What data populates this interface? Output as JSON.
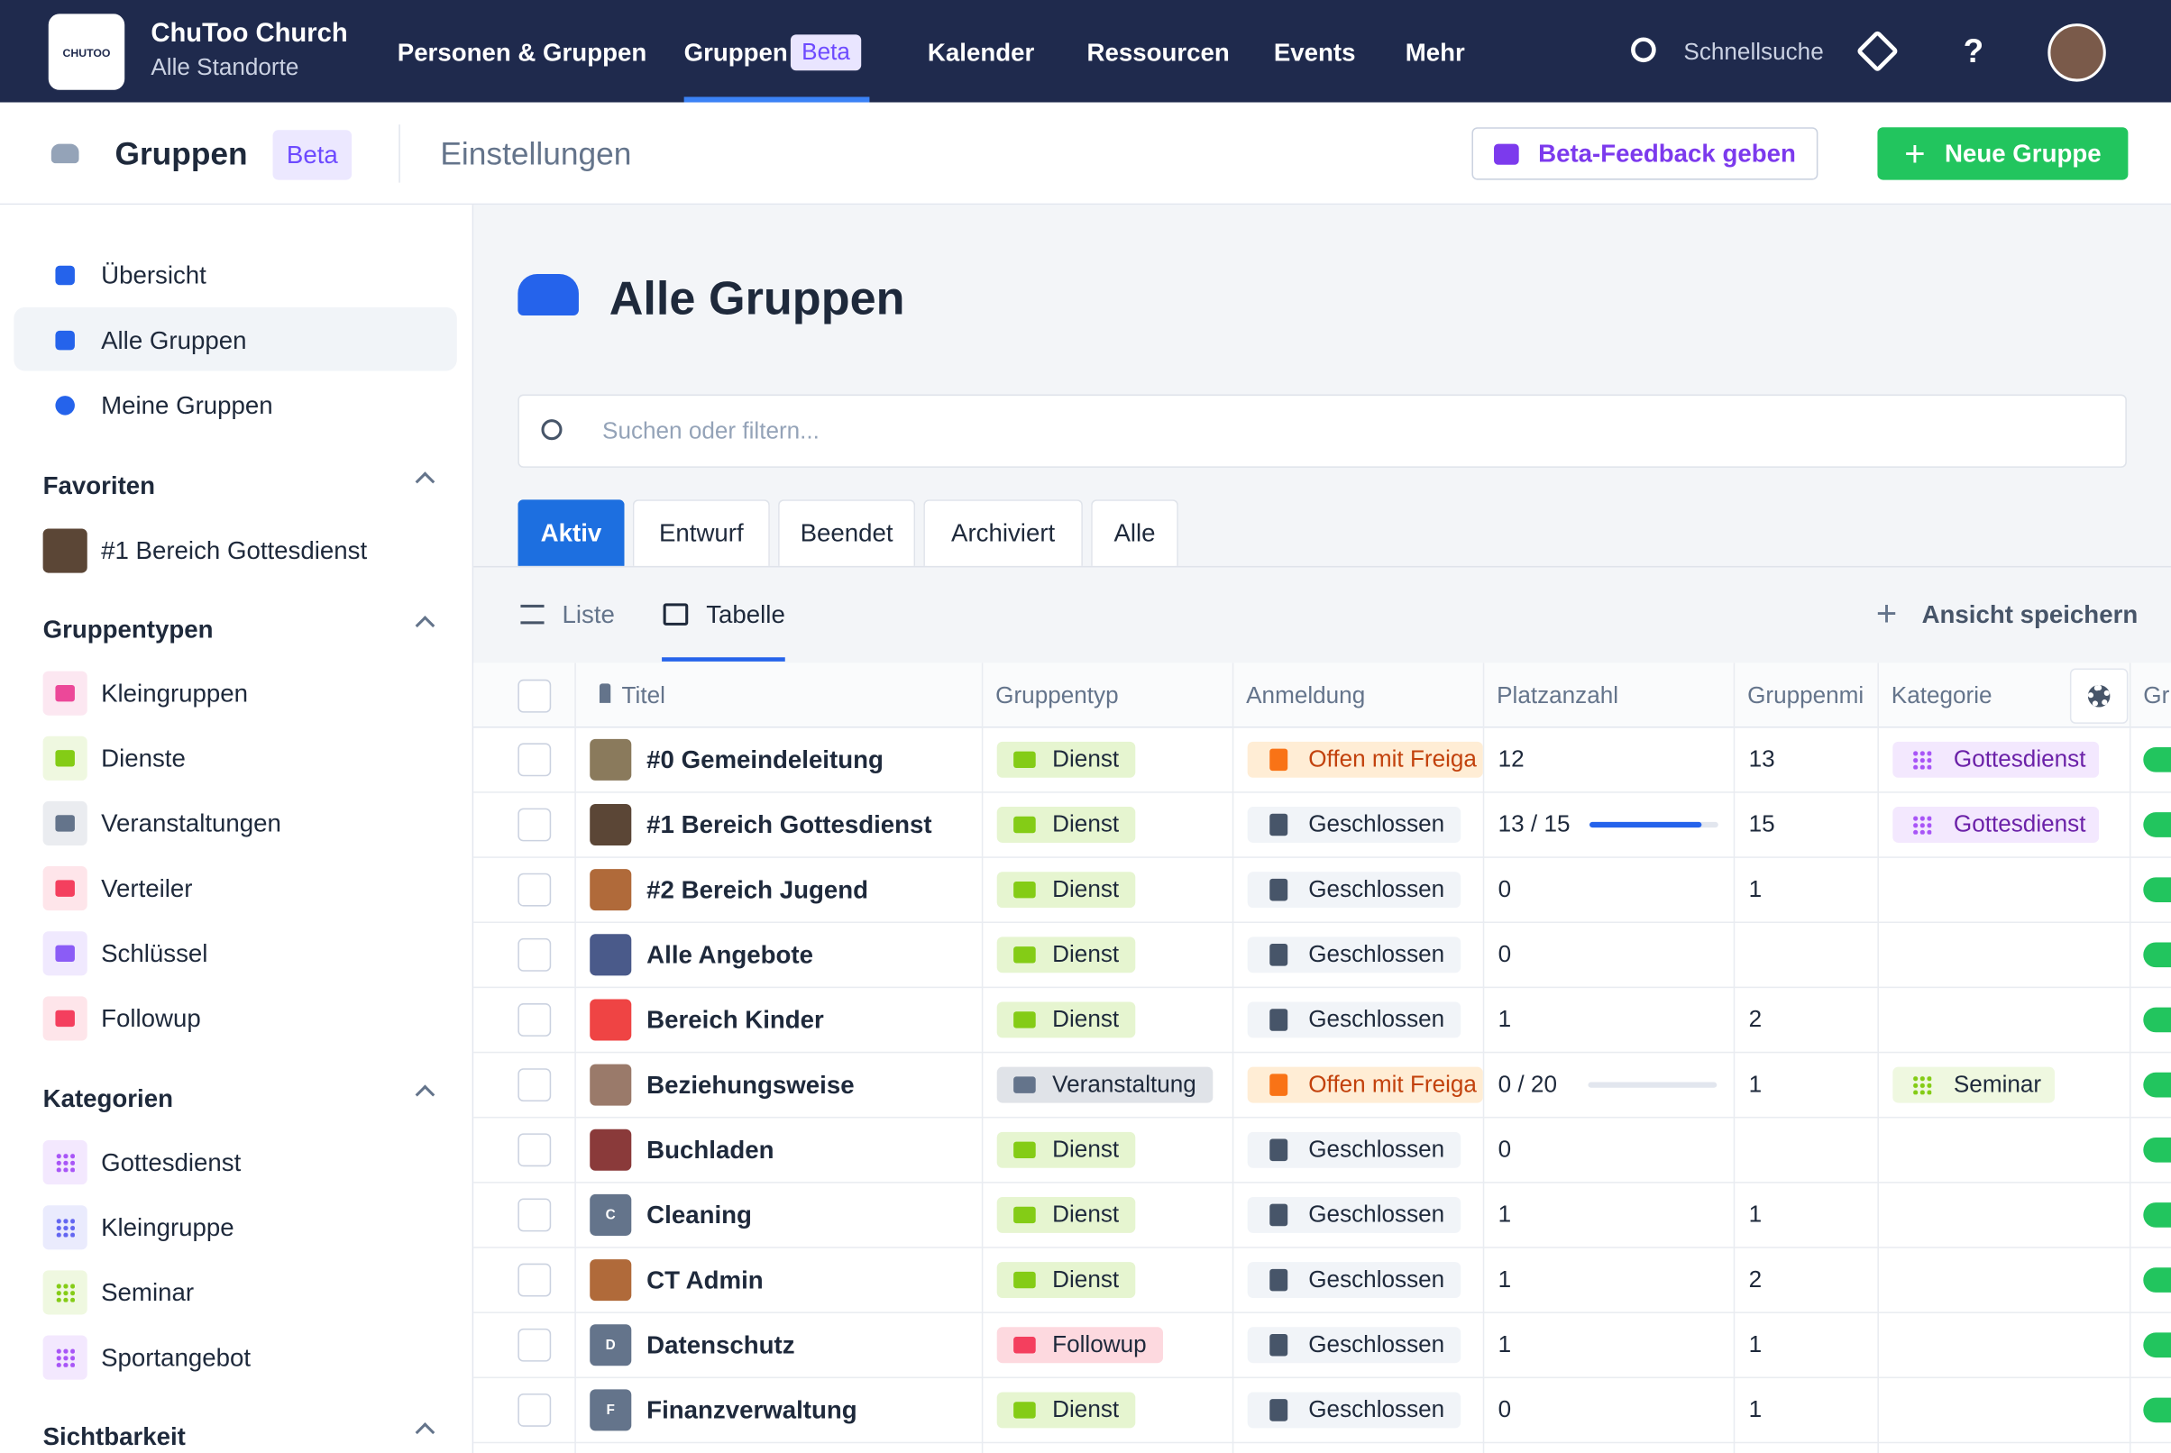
{
  "topbar": {
    "logo": "CHUTOO",
    "org_name": "ChuToo Church",
    "location": "Alle Standorte",
    "nav": [
      "Personen & Gruppen",
      "Gruppen",
      "Kalender",
      "Ressourcen",
      "Events",
      "Mehr"
    ],
    "nav_badge": "Beta",
    "search": "Schnellsuche",
    "help": "?"
  },
  "subheader": {
    "title": "Gruppen",
    "badge": "Beta",
    "settings": "Einstellungen",
    "feedback": "Beta-Feedback geben",
    "new_group": "Neue Gruppe"
  },
  "sidebar": {
    "main": [
      "Übersicht",
      "Alle Gruppen",
      "Meine Gruppen"
    ],
    "favorites": {
      "title": "Favoriten",
      "items": [
        "#1 Bereich Gottesdienst"
      ]
    },
    "types": {
      "title": "Gruppentypen",
      "items": [
        {
          "label": "Kleingruppen",
          "color": "#ec4899"
        },
        {
          "label": "Dienste",
          "color": "#84cc16"
        },
        {
          "label": "Veranstaltungen",
          "color": "#64748b"
        },
        {
          "label": "Verteiler",
          "color": "#f43f5e"
        },
        {
          "label": "Schlüssel",
          "color": "#8b5cf6"
        },
        {
          "label": "Followup",
          "color": "#f43f5e"
        }
      ]
    },
    "categories": {
      "title": "Kategorien",
      "items": [
        {
          "label": "Gottesdienst",
          "color": "#a855f7"
        },
        {
          "label": "Kleingruppe",
          "color": "#6366f1"
        },
        {
          "label": "Seminar",
          "color": "#84cc16"
        },
        {
          "label": "Sportangebot",
          "color": "#a855f7"
        }
      ]
    },
    "visibility": {
      "title": "Sichtbarkeit"
    }
  },
  "main": {
    "title": "Alle Gruppen",
    "search_placeholder": "Suchen oder filtern...",
    "tabs": [
      "Aktiv",
      "Entwurf",
      "Beendet",
      "Archiviert",
      "Alle"
    ],
    "views": [
      "Liste",
      "Tabelle"
    ],
    "save_view": "Ansicht speichern",
    "table": {
      "columns": [
        "Titel",
        "Gruppentyp",
        "Anmeldung",
        "Platzanzahl",
        "Gruppenmi",
        "Kategorie",
        "Gr"
      ],
      "rows": [
        {
          "title": "#0 Gemeindeleitung",
          "avatar": "#8a7a5c",
          "type": "Dienst",
          "type_color": "#84cc16",
          "registration": "Offen mit Freiga",
          "registration_open": true,
          "places": 12,
          "members": 13,
          "category": "Gottesdienst"
        },
        {
          "title": "#1 Bereich Gottesdienst",
          "avatar": "#5b4636",
          "type": "Dienst",
          "type_color": "#84cc16",
          "registration": "Geschlossen",
          "registration_open": false,
          "places": {
            "count": 13,
            "capacity": 15,
            "label": "13 / 15"
          },
          "members": 15,
          "category": "Gottesdienst"
        },
        {
          "title": "#2 Bereich Jugend",
          "avatar": "#b06a3a",
          "type": "Dienst",
          "type_color": "#84cc16",
          "registration": "Geschlossen",
          "registration_open": false,
          "places": 0,
          "members": 1,
          "category": null
        },
        {
          "title": "Alle Angebote",
          "avatar": "#4a5a8a",
          "type": "Dienst",
          "type_color": "#84cc16",
          "registration": "Geschlossen",
          "registration_open": false,
          "places": 0,
          "members": null,
          "category": null
        },
        {
          "title": "Bereich Kinder",
          "avatar": "#ef4444",
          "type": "Dienst",
          "type_color": "#84cc16",
          "registration": "Geschlossen",
          "registration_open": false,
          "places": 1,
          "members": 2,
          "category": null
        },
        {
          "title": "Beziehungsweise",
          "avatar": "#9a7a6a",
          "type": "Veranstaltung",
          "type_color": "#64748b",
          "registration": "Offen mit Freiga",
          "registration_open": true,
          "places": {
            "count": 0,
            "capacity": 20,
            "label": "0 / 20"
          },
          "members": 1,
          "category": "Seminar"
        },
        {
          "title": "Buchladen",
          "avatar": "#8a3a3a",
          "type": "Dienst",
          "type_color": "#84cc16",
          "registration": "Geschlossen",
          "registration_open": false,
          "places": 0,
          "members": null,
          "category": null
        },
        {
          "title": "Cleaning",
          "avatar": "#64748b",
          "avatar_letter": "C",
          "type": "Dienst",
          "type_color": "#84cc16",
          "registration": "Geschlossen",
          "registration_open": false,
          "places": 1,
          "members": 1,
          "category": null
        },
        {
          "title": "CT Admin",
          "avatar": "#b06a3a",
          "type": "Dienst",
          "type_color": "#84cc16",
          "registration": "Geschlossen",
          "registration_open": false,
          "places": 1,
          "members": 2,
          "category": null
        },
        {
          "title": "Datenschutz",
          "avatar": "#64748b",
          "avatar_letter": "D",
          "type": "Followup",
          "type_color": "#f43f5e",
          "registration": "Geschlossen",
          "registration_open": false,
          "places": 1,
          "members": 1,
          "category": null
        },
        {
          "title": "Finanzverwaltung",
          "avatar": "#64748b",
          "avatar_letter": "F",
          "type": "Dienst",
          "type_color": "#84cc16",
          "registration": "Geschlossen",
          "registration_open": false,
          "places": 0,
          "members": 1,
          "category": null
        }
      ]
    }
  }
}
